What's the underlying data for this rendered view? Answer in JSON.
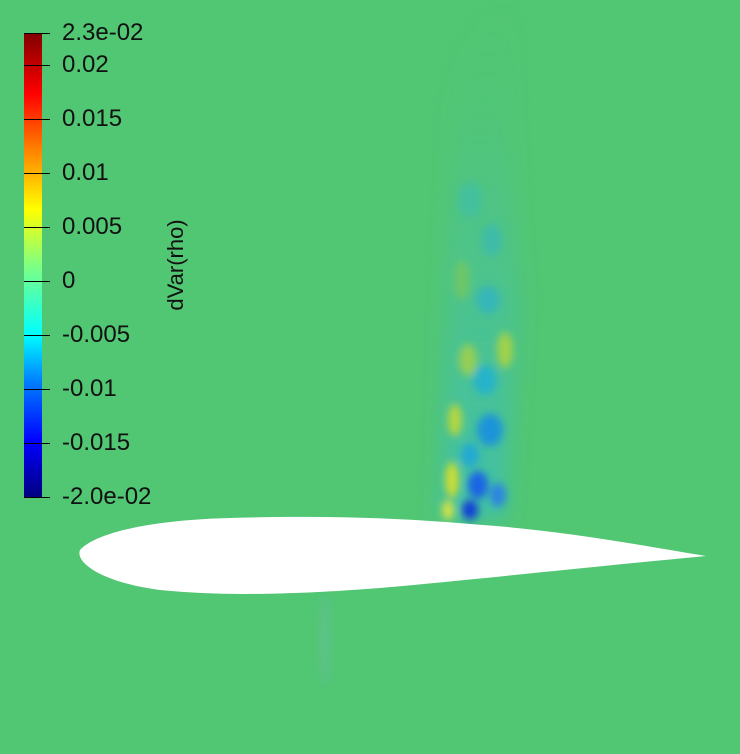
{
  "background_color": "#51c673",
  "airfoil_color": "#ffffff",
  "colorbar": {
    "title": "dVar(rho)",
    "max_label": "2.3e-02",
    "min_label": "-2.0e-02",
    "ticks": [
      {
        "value": 0.023,
        "label": "2.3e-02"
      },
      {
        "value": 0.02,
        "label": "0.02"
      },
      {
        "value": 0.015,
        "label": "0.015"
      },
      {
        "value": 0.01,
        "label": "0.01"
      },
      {
        "value": 0.005,
        "label": "0.005"
      },
      {
        "value": 0,
        "label": "0"
      },
      {
        "value": -0.005,
        "label": "-0.005"
      },
      {
        "value": -0.01,
        "label": "-0.01"
      },
      {
        "value": -0.015,
        "label": "-0.015"
      },
      {
        "value": -0.02,
        "label": "-2.0e-02"
      }
    ],
    "colormap": [
      "#000080",
      "#0000ff",
      "#0080ff",
      "#00ffff",
      "#80ff80",
      "#ffff00",
      "#ff8000",
      "#ff0000",
      "#800000"
    ]
  }
}
